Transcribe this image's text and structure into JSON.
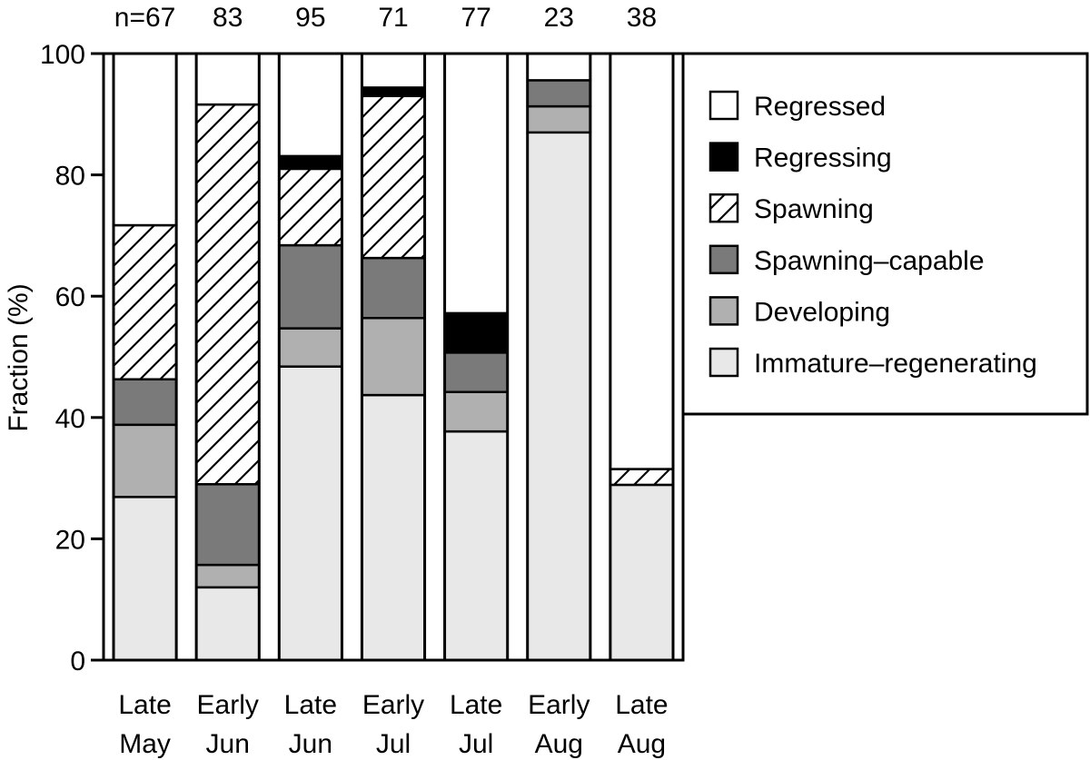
{
  "chart_data": {
    "type": "bar",
    "stacked": true,
    "categories": [
      [
        "Late",
        "May"
      ],
      [
        "Early",
        "Jun"
      ],
      [
        "Late",
        "Jun"
      ],
      [
        "Early",
        "Jul"
      ],
      [
        "Late",
        "Jul"
      ],
      [
        "Early",
        "Aug"
      ],
      [
        "Late",
        "Aug"
      ]
    ],
    "sample_sizes": [
      "n=67",
      "83",
      "95",
      "71",
      "77",
      "23",
      "38"
    ],
    "ylabel": "Fraction (%)",
    "ylim": [
      0,
      100
    ],
    "yticks": [
      0,
      20,
      40,
      60,
      80,
      100
    ],
    "grid": false,
    "legend_position": "right",
    "series": [
      {
        "name": "Immature–regenerating",
        "fill": "#e8e8e8",
        "pattern": "none",
        "values": [
          26.9,
          12.0,
          48.4,
          43.7,
          37.7,
          87.0,
          28.9
        ]
      },
      {
        "name": "Developing",
        "fill": "#b0b0b0",
        "pattern": "none",
        "values": [
          11.9,
          3.7,
          6.3,
          12.7,
          6.5,
          4.3,
          0.0
        ]
      },
      {
        "name": "Spawning–capable",
        "fill": "#7a7a7a",
        "pattern": "none",
        "values": [
          7.5,
          13.3,
          13.7,
          9.9,
          6.5,
          4.3,
          0.0
        ]
      },
      {
        "name": "Spawning",
        "fill": "#ffffff",
        "pattern": "hatch",
        "values": [
          25.4,
          62.6,
          12.6,
          26.7,
          0.0,
          0.0,
          2.6
        ]
      },
      {
        "name": "Regressing",
        "fill": "#000000",
        "pattern": "none",
        "values": [
          0.0,
          0.0,
          2.1,
          1.4,
          6.5,
          0.0,
          0.0
        ]
      },
      {
        "name": "Regressed",
        "fill": "#ffffff",
        "pattern": "none",
        "values": [
          28.3,
          8.4,
          16.9,
          5.6,
          42.8,
          4.4,
          68.5
        ]
      }
    ],
    "legend_order": [
      "Regressed",
      "Regressing",
      "Spawning",
      "Spawning–capable",
      "Developing",
      "Immature–regenerating"
    ]
  }
}
